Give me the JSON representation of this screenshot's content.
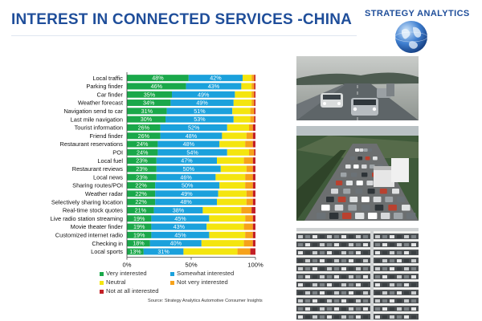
{
  "title": "INTEREST IN CONNECTED SERVICES -CHINA",
  "brand": "STRATEGY ANALYTICS",
  "source": "Source: Strategy Analytics Automotive Consumer Insights",
  "colors": {
    "very_interested": "#1aa84a",
    "somewhat_interested": "#1ba1dc",
    "neutral": "#f4e50f",
    "not_very_interested": "#f6a21a",
    "not_at_all_interested": "#c32026",
    "title": "#1f4e9a"
  },
  "photos": [
    "highway-traffic-photo",
    "traffic-jam-photo",
    "parking-garage-photo"
  ],
  "chart_data": {
    "type": "bar",
    "orientation": "horizontal",
    "stacked": true,
    "normalized": "percent",
    "title": "",
    "xlabel": "",
    "ylabel": "",
    "xlim": [
      0,
      100
    ],
    "xticks": [
      "0%",
      "50%",
      "100%"
    ],
    "grid": false,
    "legend_position": "bottom",
    "categories": [
      "Local traffic",
      "Parking finder",
      "Car finder",
      "Weather forecast",
      "Navigation send to car",
      "Last mile navigation",
      "Tourist information",
      "Friend finder",
      "Restaurant reservations",
      "POI",
      "Local fuel",
      "Restaurant reviews",
      "Local news",
      "Sharing routes/POI",
      "Weather radar",
      "Selectively sharing  location",
      "Real-time stock quotes",
      "Live radio station streaming",
      "Movie theater finder",
      "Customized internet radio",
      "Checking in",
      "Local sports"
    ],
    "series": [
      {
        "name": "Very interested",
        "values": [
          48,
          46,
          35,
          34,
          31,
          30,
          26,
          26,
          24,
          24,
          23,
          23,
          23,
          22,
          22,
          22,
          21,
          19,
          19,
          19,
          18,
          13
        ],
        "labels": [
          "48%",
          "46%",
          "35%",
          "34%",
          "31%",
          "30%",
          "26%",
          "26%",
          "24%",
          "24%",
          "23%",
          "23%",
          "23%",
          "22%",
          "22%",
          "22%",
          "21%",
          "19%",
          "19%",
          "19%",
          "18%",
          "13%"
        ]
      },
      {
        "name": "Somewhat interested",
        "values": [
          42,
          43,
          49,
          49,
          51,
          53,
          52,
          48,
          48,
          54,
          47,
          50,
          46,
          50,
          49,
          48,
          38,
          45,
          43,
          45,
          40,
          31
        ],
        "labels": [
          "42%",
          "43%",
          "49%",
          "49%",
          "51%",
          "53%",
          "52%",
          "48%",
          "48%",
          "54%",
          "47%",
          "50%",
          "46%",
          "50%",
          "49%",
          "48%",
          "38%",
          "45%",
          "43%",
          "45%",
          "40%",
          "31%"
        ]
      },
      {
        "name": "Neutral",
        "values": [
          7,
          8,
          13,
          14,
          14,
          13,
          17,
          19,
          20,
          17,
          21,
          20,
          23,
          20,
          22,
          23,
          30,
          28,
          29,
          28,
          33,
          42
        ]
      },
      {
        "name": "Not very interested",
        "values": [
          2,
          2,
          2,
          2,
          3,
          3,
          3,
          5,
          6,
          4,
          7,
          5,
          6,
          6,
          5,
          5,
          8,
          6,
          7,
          6,
          7,
          10
        ]
      },
      {
        "name": "Not at all interested",
        "values": [
          1,
          1,
          1,
          1,
          1,
          1,
          2,
          2,
          2,
          1,
          2,
          2,
          2,
          2,
          2,
          2,
          3,
          2,
          2,
          2,
          2,
          4
        ]
      }
    ]
  }
}
